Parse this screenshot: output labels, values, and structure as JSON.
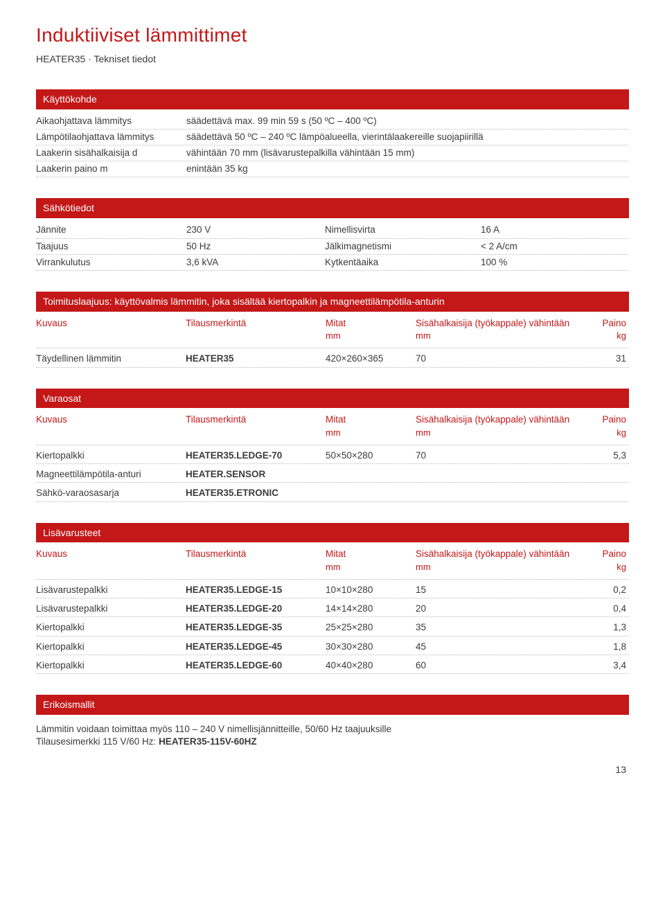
{
  "title": "Induktiiviset lämmittimet",
  "subtitle": "HEATER35 · Tekniset tiedot",
  "page_number": "13",
  "application": {
    "heading": "Käyttökohde",
    "rows": [
      {
        "label": "Aikaohjattava lämmitys",
        "value": "säädettävä max. 99 min 59 s (50 ºC – 400 ºC)"
      },
      {
        "label": "Lämpötilaohjattava lämmitys",
        "value": "säädettävä 50 ºC – 240 ºC lämpöalueella, vierintälaakereille suojapiirillä"
      },
      {
        "label": "Laakerin sisähalkaisija d",
        "value": "vähintään 70 mm (lisävarustepalkilla vähintään 15 mm)"
      },
      {
        "label": "Laakerin paino m",
        "value": "enintään 35 kg"
      }
    ]
  },
  "electrical": {
    "heading": "Sähkötiedot",
    "rows": [
      {
        "a": "Jännite",
        "b": "230 V",
        "c": "Nimellisvirta",
        "d": "16 A"
      },
      {
        "a": "Taajuus",
        "b": "50 Hz",
        "c": "Jälkimagnetismi",
        "d": "< 2 A/cm"
      },
      {
        "a": "Virrankulutus",
        "b": "3,6 kVA",
        "c": "Kytkentäaika",
        "d": "100 %"
      }
    ]
  },
  "columns": {
    "desc": "Kuvaus",
    "order": "Tilausmerkintä",
    "dims": "Mitat",
    "dims_unit": "mm",
    "bore": "Sisähalkaisija (työkappale) vähintään",
    "bore_unit": "mm",
    "weight": "Paino",
    "weight_unit": "kg"
  },
  "scope": {
    "heading": "Toimituslaajuus: käyttövalmis lämmitin, joka sisältää kiertopalkin ja magneettilämpötila-anturin",
    "rows": [
      {
        "desc": "Täydellinen lämmitin",
        "order": "HEATER35",
        "dims": "420×260×365",
        "bore": "70",
        "weight": "31"
      }
    ]
  },
  "spares": {
    "heading": "Varaosat",
    "rows": [
      {
        "desc": "Kiertopalkki",
        "order": "HEATER35.LEDGE-70",
        "dims": "50×50×280",
        "bore": "70",
        "weight": "5,3"
      },
      {
        "desc": "Magneettilämpötila-anturi",
        "order": "HEATER.SENSOR",
        "dims": "",
        "bore": "",
        "weight": ""
      },
      {
        "desc": "Sähkö-varaosasarja",
        "order": "HEATER35.ETRONIC",
        "dims": "",
        "bore": "",
        "weight": ""
      }
    ]
  },
  "accessories": {
    "heading": "Lisävarusteet",
    "rows": [
      {
        "desc": "Lisävarustepalkki",
        "order": "HEATER35.LEDGE-15",
        "dims": "10×10×280",
        "bore": "15",
        "weight": "0,2"
      },
      {
        "desc": "Lisävarustepalkki",
        "order": "HEATER35.LEDGE-20",
        "dims": "14×14×280",
        "bore": "20",
        "weight": "0,4"
      },
      {
        "desc": "Kiertopalkki",
        "order": "HEATER35.LEDGE-35",
        "dims": "25×25×280",
        "bore": "35",
        "weight": "1,3"
      },
      {
        "desc": "Kiertopalkki",
        "order": "HEATER35.LEDGE-45",
        "dims": "30×30×280",
        "bore": "45",
        "weight": "1,8"
      },
      {
        "desc": "Kiertopalkki",
        "order": "HEATER35.LEDGE-60",
        "dims": "40×40×280",
        "bore": "60",
        "weight": "3,4"
      }
    ]
  },
  "special": {
    "heading": "Erikoismallit",
    "line1": "Lämmitin voidaan toimittaa myös 110 – 240 V nimellisjännitteille, 50/60 Hz taajuuksille",
    "line2_a": "Tilausesimerkki 115 V/60 Hz: ",
    "line2_b": "HEATER35-115V-60HZ"
  }
}
